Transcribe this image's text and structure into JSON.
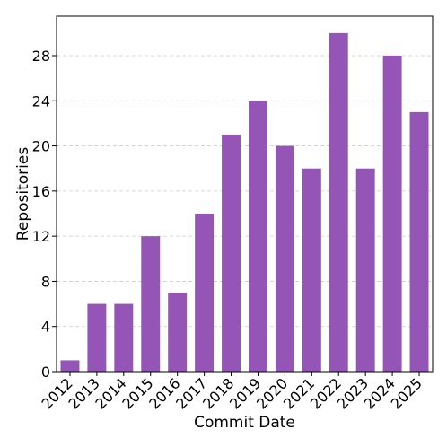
{
  "chart_data": {
    "type": "bar",
    "title": "",
    "xlabel": "Commit Date",
    "ylabel": "Repositories",
    "categories": [
      "2012",
      "2013",
      "2014",
      "2015",
      "2016",
      "2017",
      "2018",
      "2019",
      "2020",
      "2021",
      "2022",
      "2023",
      "2024",
      "2025"
    ],
    "series": [
      {
        "values": [
          1,
          6,
          6,
          12,
          7,
          14,
          21,
          24,
          20,
          18,
          30,
          18,
          28,
          23
        ]
      }
    ],
    "ylim": [
      0,
      31.5
    ],
    "yticks": [
      0,
      4,
      8,
      12,
      16,
      20,
      24,
      28
    ],
    "grid": "horizontal dashed",
    "legend": "none",
    "colors": {
      "bar": "#9455b6",
      "grid": "#cccccc",
      "axis": "#000000"
    }
  }
}
